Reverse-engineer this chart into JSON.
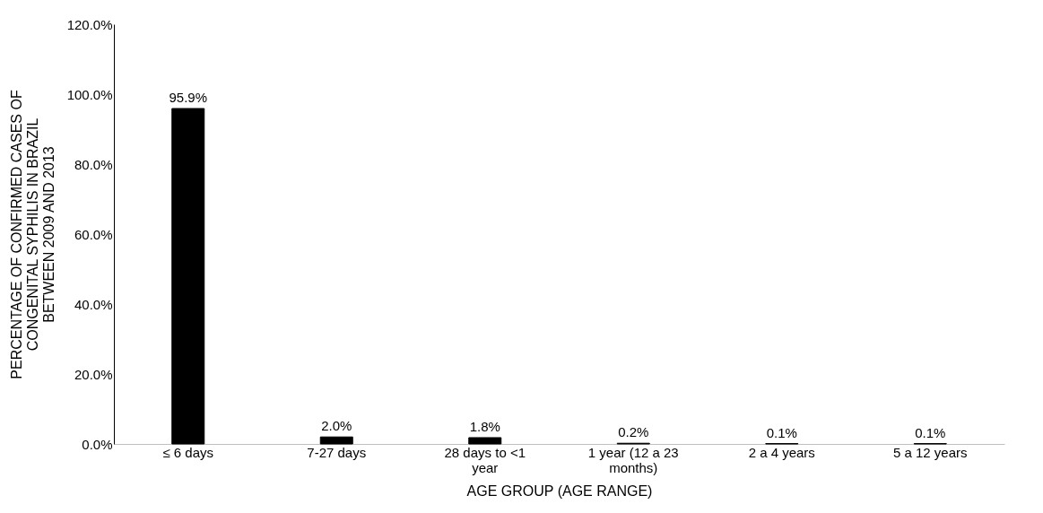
{
  "chart_data": {
    "type": "bar",
    "xlabel": "AGE GROUP (AGE RANGE)",
    "ylabel": "PERCENTAGE OF CONFIRMED CASES OF CONGENITAL SYPHILIS IN BRAZIL BETWEEN 2009 AND 2013",
    "categories": [
      "≤ 6 days",
      "7-27 days",
      "28 days to <1 year",
      "1 year (12 a 23 months)",
      "2 a 4 years",
      "5 a 12 years"
    ],
    "values": [
      95.9,
      2.0,
      1.8,
      0.2,
      0.1,
      0.1
    ],
    "value_labels": [
      "95.9%",
      "2.0%",
      "1.8%",
      "0.2%",
      "0.1%",
      "0.1%"
    ],
    "color": "#000000",
    "ylim": [
      0,
      120
    ],
    "yticks": [
      {
        "value": 0,
        "label": "0.0%"
      },
      {
        "value": 20,
        "label": "20.0%"
      },
      {
        "value": 40,
        "label": "40.0%"
      },
      {
        "value": 60,
        "label": "60.0%"
      },
      {
        "value": 80,
        "label": "80.0%"
      },
      {
        "value": 100,
        "label": "100.0%"
      },
      {
        "value": 120,
        "label": "120.0%"
      }
    ],
    "grid": false
  }
}
